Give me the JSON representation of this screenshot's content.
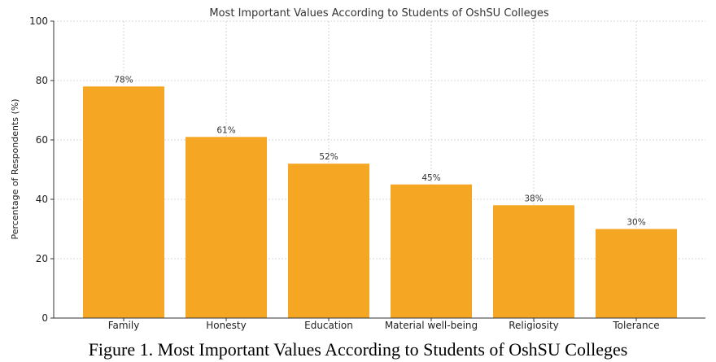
{
  "chart_data": {
    "type": "bar",
    "title": "Most Important Values According to Students of OshSU Colleges",
    "xlabel": "",
    "ylabel": "Percentage of Respondents (%)",
    "categories": [
      "Family",
      "Honesty",
      "Education",
      "Material well-being",
      "Religiosity",
      "Tolerance"
    ],
    "values": [
      78,
      61,
      52,
      45,
      38,
      30
    ],
    "data_labels": [
      "78%",
      "61%",
      "52%",
      "45%",
      "38%",
      "30%"
    ],
    "ylim": [
      0,
      100
    ],
    "yticks": [
      "0",
      "20",
      "40",
      "60",
      "80",
      "100"
    ],
    "grid": true,
    "bar_color": "#F5A623"
  },
  "caption": "Figure 1. Most Important Values According to Students of OshSU Colleges"
}
